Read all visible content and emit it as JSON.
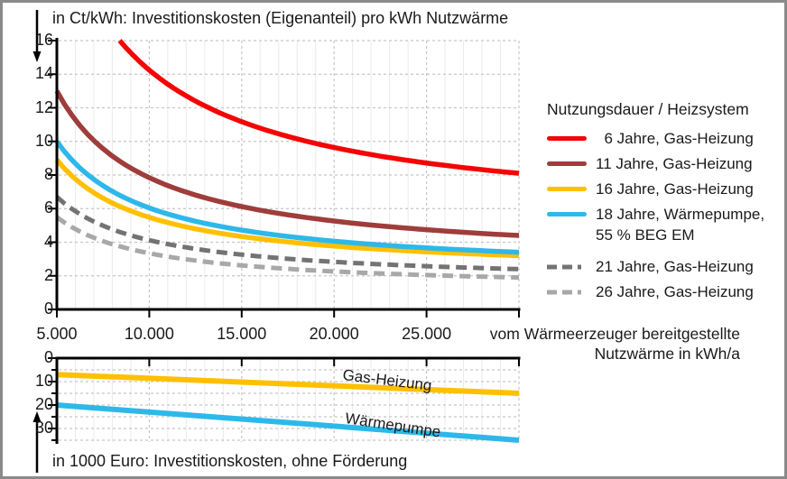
{
  "figure": {
    "border_color": "#8a8a8a",
    "axis_color": "#000000",
    "grid_color": "#c6c6c6",
    "minor_grid_color": "#ebebeb",
    "text_color": "#1a1a1a"
  },
  "chart_data": [
    {
      "type": "line",
      "title": "in Ct/kWh: Investitionskosten (Eigenanteil) pro kWh Nutzwärme",
      "xlabel": "vom Wärmeerzeuger bereitgestellte Nutzwärme in kWh/a",
      "xlabel_lines": [
        "vom Wärmeerzeuger bereitgestellte",
        "Nutzwärme in kWh/a"
      ],
      "ylabel": "Ct/kWh",
      "xlim": [
        5000,
        30000
      ],
      "ylim": [
        0,
        16
      ],
      "grid": true,
      "x_ticks": [
        {
          "x": 5000,
          "label": "5.000"
        },
        {
          "x": 10000,
          "label": "10.000"
        },
        {
          "x": 15000,
          "label": "15.000"
        },
        {
          "x": 20000,
          "label": "20.000"
        },
        {
          "x": 25000,
          "label": "25.000"
        },
        {
          "x": 30000,
          "label": ""
        }
      ],
      "y_ticks": [
        0,
        2,
        4,
        6,
        8,
        10,
        12,
        14,
        16
      ],
      "curve_model": "a_over_x_plus_b_fitted_through_end_points",
      "series": [
        {
          "name": "6 Jahre, Gas-Heizung",
          "color": "#f40505",
          "dash": "solid",
          "x": [
            8400,
            10000,
            15000,
            20000,
            25000,
            30000
          ],
          "y": [
            16,
            14.3,
            11.2,
            9.6,
            8.7,
            8.1
          ]
        },
        {
          "name": "11 Jahre, Gas-Heizung",
          "color": "#9e3d3b",
          "dash": "solid",
          "x": [
            5000,
            10000,
            15000,
            20000,
            25000,
            30000
          ],
          "y": [
            13,
            7.8,
            6.1,
            5.3,
            4.7,
            4.4
          ]
        },
        {
          "name": "16 Jahre, Gas-Heizung",
          "color": "#ffc000",
          "dash": "solid",
          "x": [
            5000,
            10000,
            15000,
            20000,
            25000,
            30000
          ],
          "y": [
            8.9,
            5.5,
            4.3,
            3.8,
            3.4,
            3.2
          ]
        },
        {
          "name": "18 Jahre, Wärmepumpe, 55 % BEG EM",
          "color": "#2eb8ea",
          "dash": "solid",
          "x": [
            5000,
            10000,
            15000,
            20000,
            25000,
            30000
          ],
          "y": [
            10,
            6.0,
            4.7,
            4.1,
            3.7,
            3.4
          ]
        },
        {
          "name": "21 Jahre, Gas-Heizung",
          "color": "#737373",
          "dash": "dashed",
          "x": [
            5000,
            10000,
            15000,
            20000,
            25000,
            30000
          ],
          "y": [
            6.7,
            4.1,
            3.3,
            2.8,
            2.6,
            2.4
          ]
        },
        {
          "name": "26 Jahre, Gas-Heizung",
          "color": "#a8a8a8",
          "dash": "dashed",
          "x": [
            5000,
            10000,
            15000,
            20000,
            25000,
            30000
          ],
          "y": [
            5.5,
            3.3,
            2.6,
            2.3,
            2.0,
            1.9
          ]
        }
      ],
      "legend": {
        "position": "right",
        "title": "Nutzungsdauer / Heizsystem",
        "items": [
          {
            "series": 0,
            "lines": [
              "  6 Jahre, Gas-Heizung"
            ]
          },
          {
            "series": 1,
            "lines": [
              "11 Jahre, Gas-Heizung"
            ]
          },
          {
            "series": 2,
            "lines": [
              "16 Jahre, Gas-Heizung"
            ]
          },
          {
            "series": 3,
            "lines": [
              "18 Jahre, Wärmepumpe,",
              "55 % BEG EM"
            ]
          },
          {
            "series": 4,
            "lines": [
              "21 Jahre, Gas-Heizung"
            ],
            "gap_before": true
          },
          {
            "series": 5,
            "lines": [
              "26 Jahre, Gas-Heizung"
            ]
          }
        ]
      }
    },
    {
      "type": "line",
      "title": "in 1000 Euro: Investitionskosten, ohne Förderung",
      "xlim": [
        5000,
        30000
      ],
      "ylim": [
        0,
        36
      ],
      "y_axis_reversed": true,
      "grid": true,
      "y_ticks_major": [
        0,
        10,
        20,
        30
      ],
      "y_ticks_minor": [
        5,
        15,
        25,
        35
      ],
      "series": [
        {
          "name": "Gas-Heizung",
          "color": "#ffc000",
          "dash": "solid",
          "x": [
            5000,
            30000
          ],
          "y": [
            7,
            15
          ]
        },
        {
          "name": "Wärmepumpe",
          "color": "#2eb8ea",
          "dash": "solid",
          "x": [
            5000,
            30000
          ],
          "y": [
            20,
            35
          ]
        }
      ]
    }
  ]
}
